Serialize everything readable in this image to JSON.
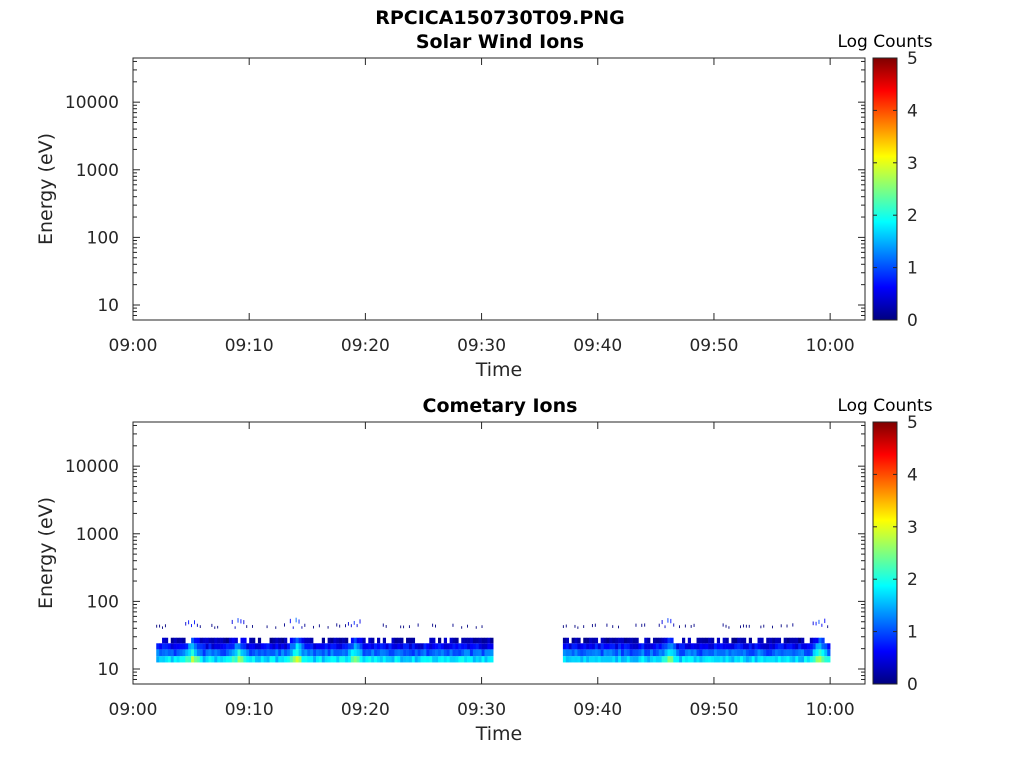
{
  "figure_title": "RPCICA150730T09.PNG",
  "colormap": [
    "#00007f",
    "#0000ff",
    "#007fff",
    "#00ffff",
    "#7fff7f",
    "#ffff00",
    "#ff7f00",
    "#ff0000",
    "#7f0000"
  ],
  "chart_data": [
    {
      "type": "heatmap",
      "title": "Solar Wind Ions",
      "xlabel": "Time",
      "ylabel": "Energy (eV)",
      "y_scale": "log",
      "xlim": [
        "09:00",
        "10:03"
      ],
      "ylim": [
        6,
        45000
      ],
      "xticks": [
        "09:00",
        "09:10",
        "09:20",
        "09:30",
        "09:40",
        "09:50",
        "10:00"
      ],
      "yticks": [
        10,
        100,
        1000,
        10000
      ],
      "ytick_labels": [
        "10",
        "100",
        "1000",
        "10000"
      ],
      "colorbar": {
        "label": "Log Counts",
        "range": [
          0,
          5
        ],
        "ticks": [
          "0",
          "1",
          "2",
          "3",
          "4",
          "5"
        ]
      },
      "segments": []
    },
    {
      "type": "heatmap",
      "title": "Cometary Ions",
      "xlabel": "Time",
      "ylabel": "Energy (eV)",
      "y_scale": "log",
      "xlim": [
        "09:00",
        "10:03"
      ],
      "ylim": [
        6,
        45000
      ],
      "xticks": [
        "09:00",
        "09:10",
        "09:20",
        "09:30",
        "09:40",
        "09:50",
        "10:00"
      ],
      "yticks": [
        10,
        100,
        1000,
        10000
      ],
      "ytick_labels": [
        "10",
        "100",
        "1000",
        "10000"
      ],
      "colorbar": {
        "label": "Log Counts",
        "range": [
          0,
          5
        ],
        "ticks": [
          "0",
          "1",
          "2",
          "3",
          "4",
          "5"
        ]
      },
      "segments": [
        {
          "start": "09:02",
          "end": "09:31"
        },
        {
          "start": "09:37",
          "end": "10:00"
        }
      ],
      "energy_bands": [
        {
          "low": 12.5,
          "high": 15.5,
          "log_counts": 1.7
        },
        {
          "low": 15.5,
          "high": 19.5,
          "log_counts": 1.1
        },
        {
          "low": 19.5,
          "high": 24,
          "log_counts": 0.6
        },
        {
          "low": 24,
          "high": 29,
          "log_counts": 0.3
        },
        {
          "low": 29,
          "high": 50,
          "log_counts": 0.15
        }
      ],
      "enhancements": [
        {
          "time": "09:05",
          "log_counts": 1.6
        },
        {
          "time": "09:09",
          "log_counts": 1.3
        },
        {
          "time": "09:14",
          "log_counts": 1.8
        },
        {
          "time": "09:19",
          "log_counts": 1.4
        },
        {
          "time": "09:46",
          "log_counts": 1.3
        },
        {
          "time": "09:59",
          "log_counts": 1.8
        }
      ]
    }
  ]
}
